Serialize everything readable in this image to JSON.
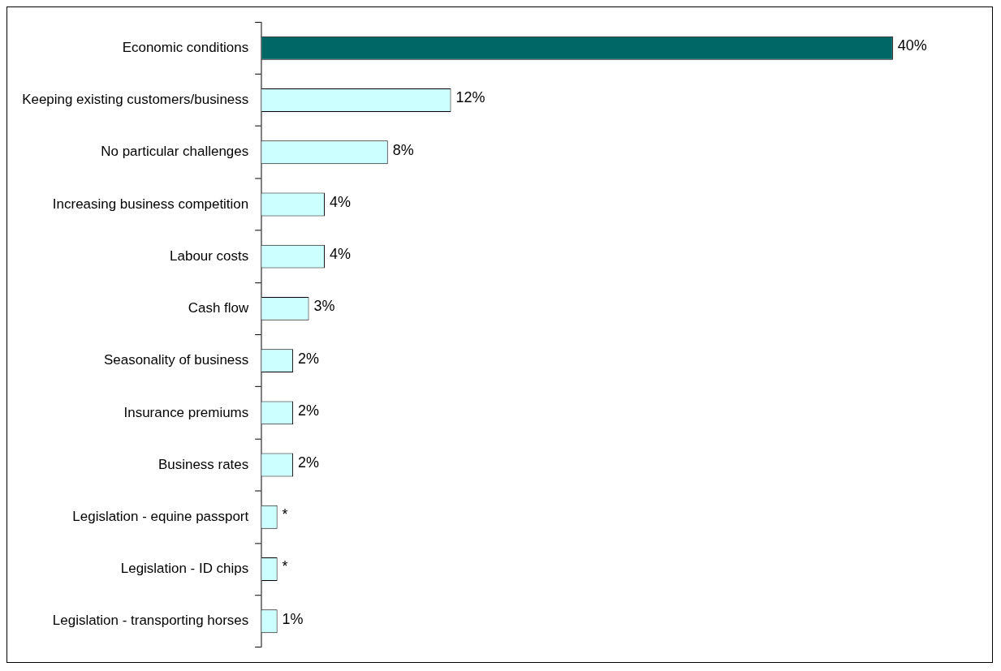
{
  "chart_data": {
    "type": "bar",
    "orientation": "horizontal",
    "categories": [
      "Economic conditions",
      "Keeping existing customers/business",
      "No particular challenges",
      "Increasing business competition",
      "Labour costs",
      "Cash flow",
      "Seasonality of business",
      "Insurance premiums",
      "Business rates",
      "Legislation - equine passport",
      "Legislation - ID chips",
      "Legislation - transporting horses"
    ],
    "values": [
      40,
      12,
      8,
      4,
      4,
      3,
      2,
      2,
      2,
      1,
      1,
      1
    ],
    "value_labels": [
      "40%",
      "12%",
      "8%",
      "4%",
      "4%",
      "3%",
      "2%",
      "2%",
      "2%",
      "*",
      "*",
      "1%"
    ],
    "colors": [
      "#006666",
      "#ccffff",
      "#ccffff",
      "#ccffff",
      "#ccffff",
      "#ccffff",
      "#ccffff",
      "#ccffff",
      "#ccffff",
      "#ccffff",
      "#ccffff",
      "#ccffff"
    ],
    "legend": false
  }
}
